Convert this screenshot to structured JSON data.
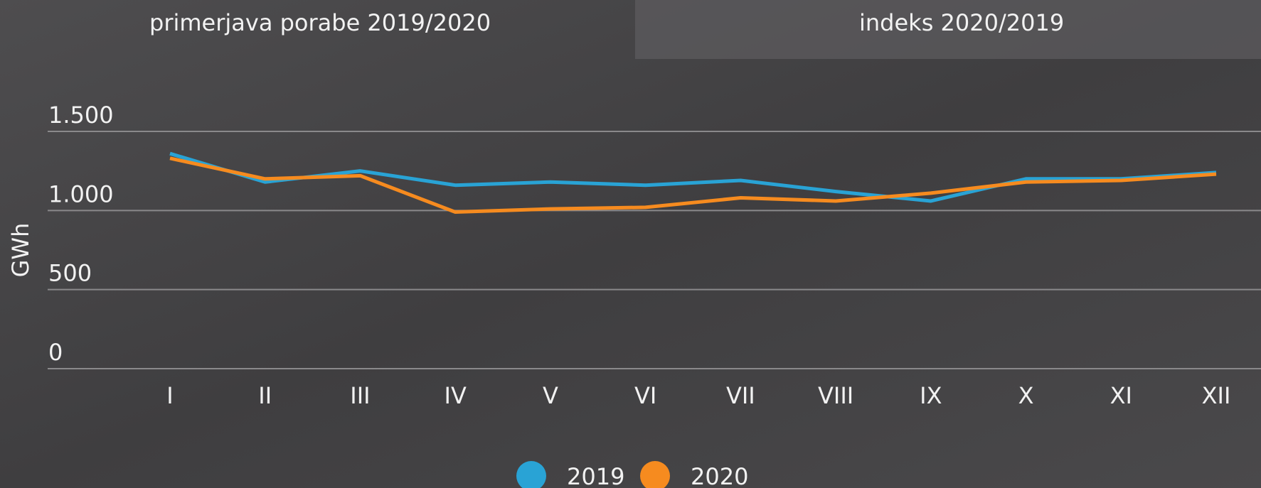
{
  "tabs": [
    "primerjava porabe 2019/2020",
    "indeks 2020/2019"
  ],
  "chart_data": {
    "type": "line",
    "ylabel": "GWh",
    "categories": [
      "I",
      "II",
      "III",
      "IV",
      "V",
      "VI",
      "VII",
      "VIII",
      "IX",
      "X",
      "XI",
      "XII"
    ],
    "series": [
      {
        "name": "2019",
        "color": "#29a3d5",
        "values": [
          1360,
          1180,
          1250,
          1160,
          1180,
          1160,
          1190,
          1120,
          1060,
          1200,
          1200,
          1240
        ]
      },
      {
        "name": "2020",
        "color": "#f68b1f",
        "values": [
          1330,
          1200,
          1220,
          990,
          1010,
          1020,
          1080,
          1060,
          1110,
          1180,
          1190,
          1230
        ]
      }
    ],
    "ylim": [
      0,
      1500
    ],
    "yticks": [
      0,
      500,
      {
        "value": 1000,
        "label": "1.000"
      },
      {
        "value": 1500,
        "label": "1.500"
      }
    ],
    "grid": true,
    "legend": "bottom"
  }
}
